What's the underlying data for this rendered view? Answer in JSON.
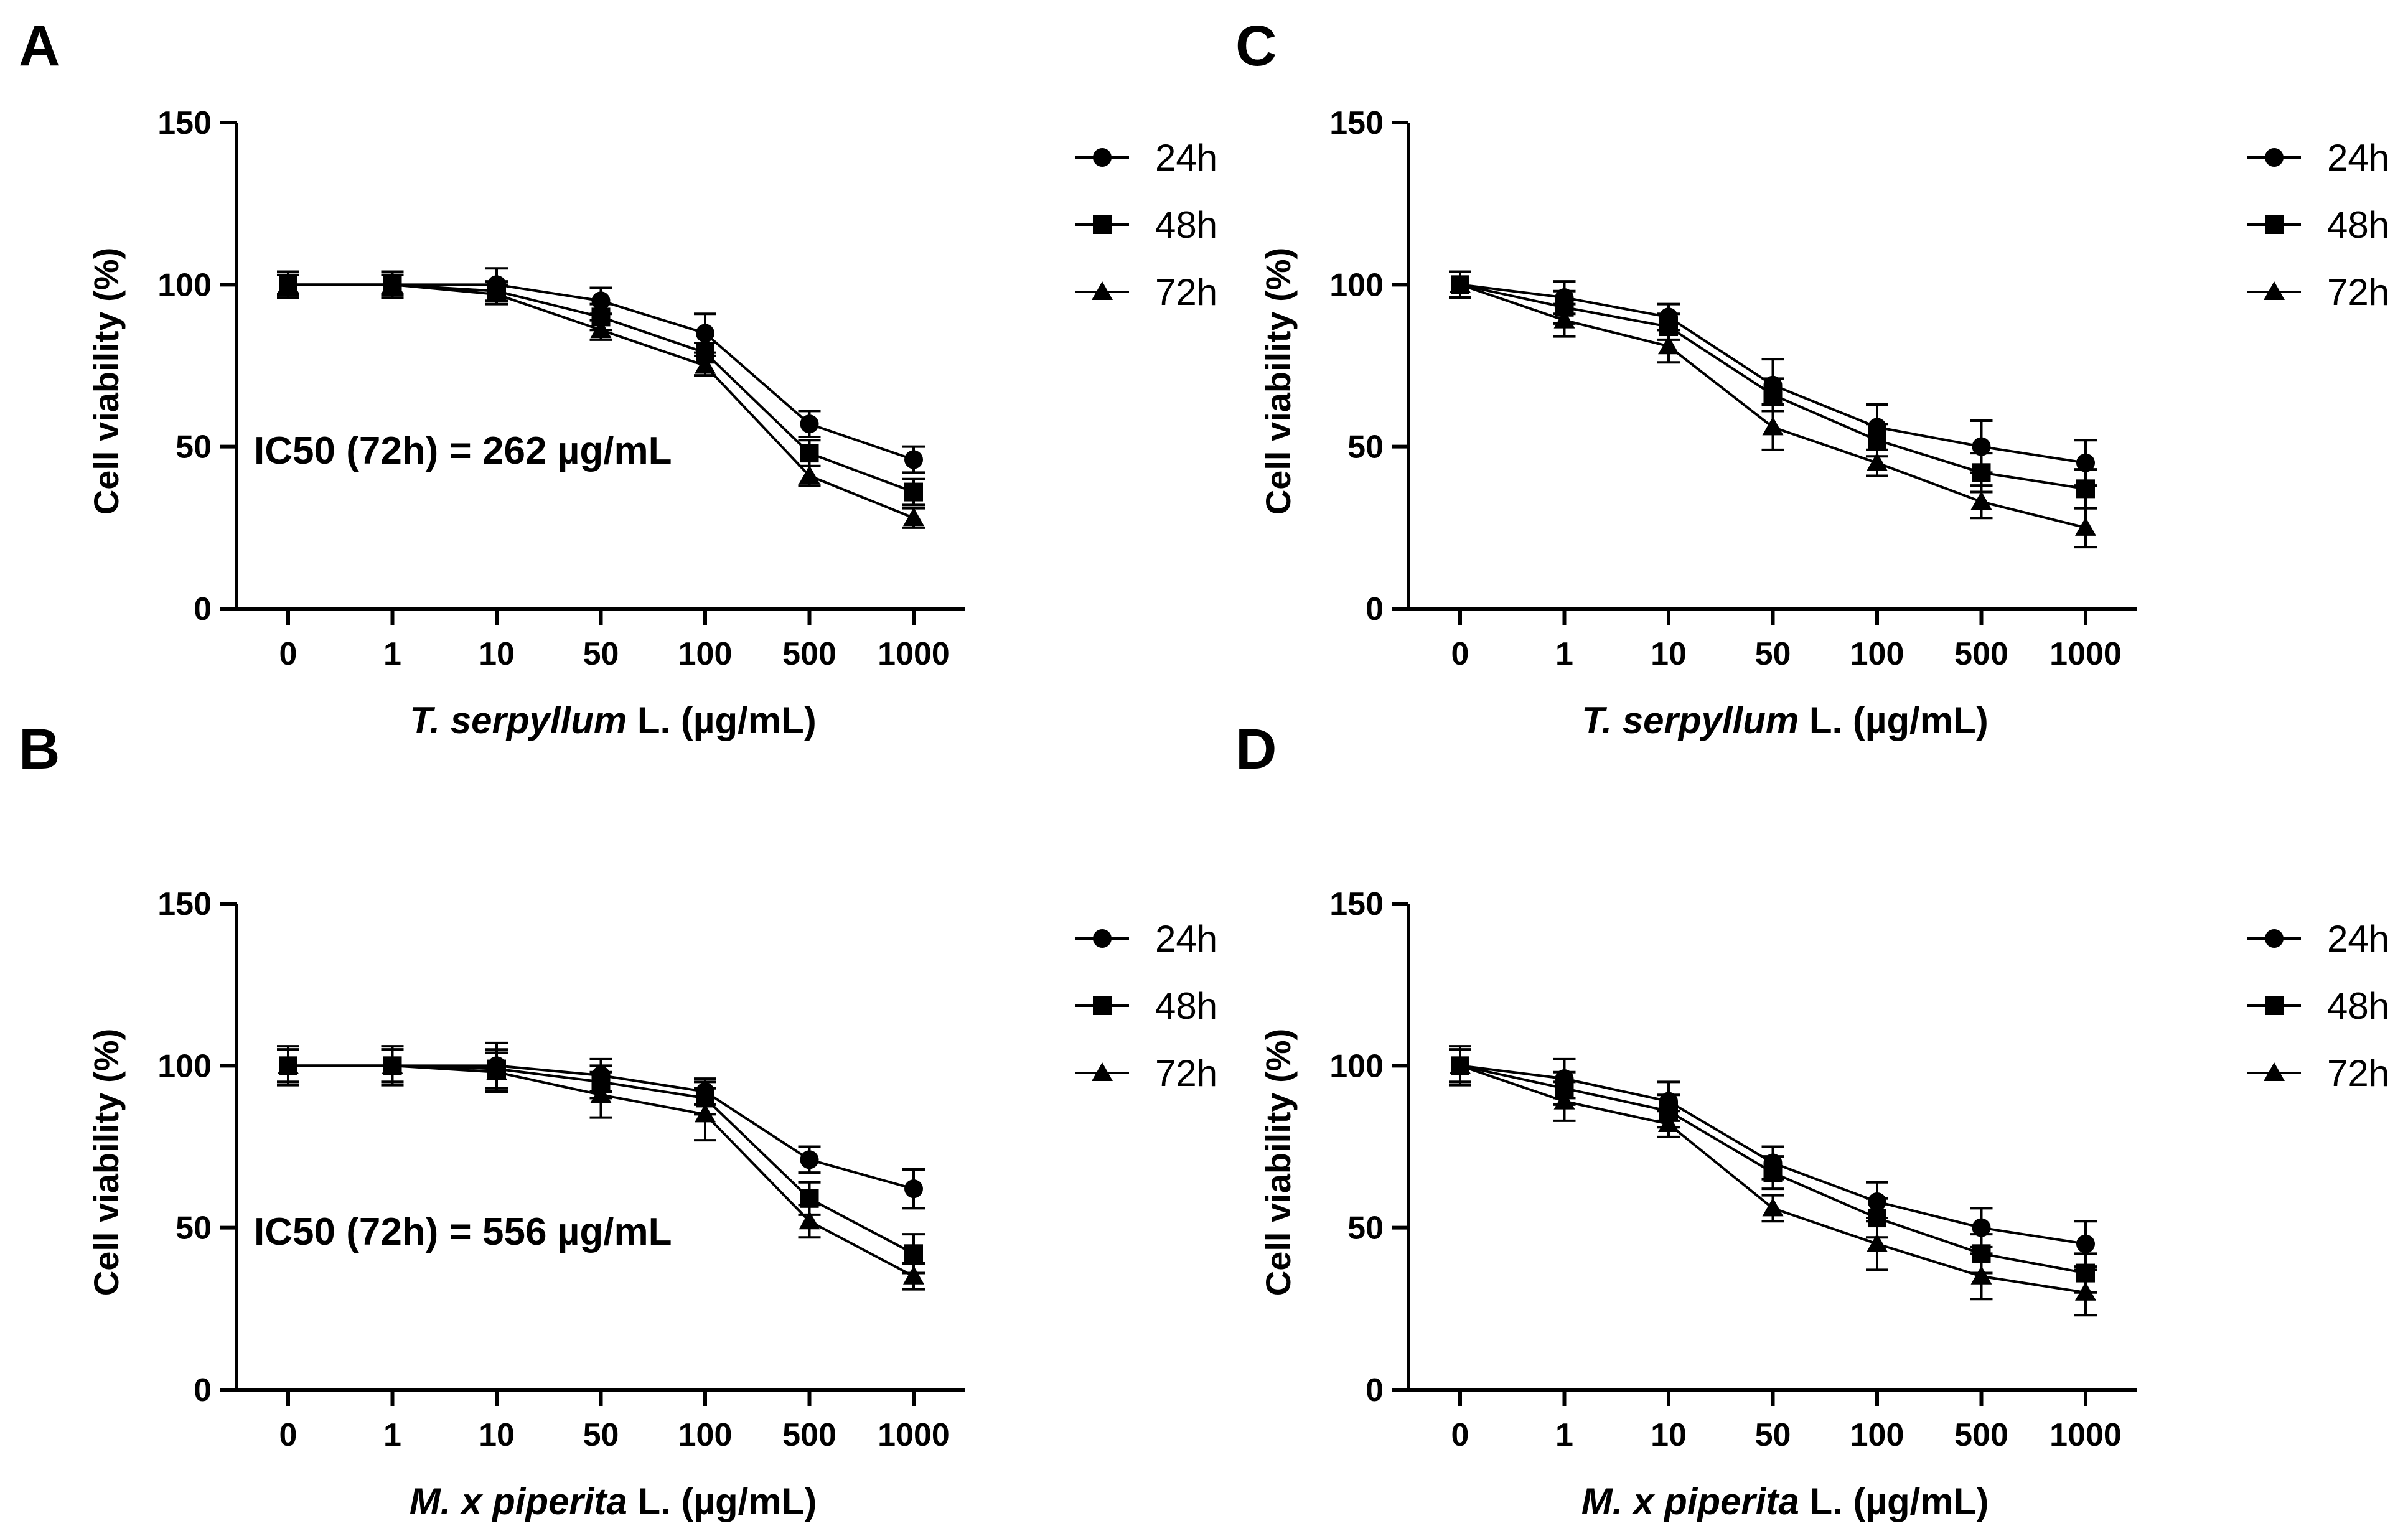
{
  "figure": {
    "panels": [
      "A",
      "C",
      "B",
      "D"
    ]
  },
  "chart_data": [
    {
      "panel": "A",
      "type": "line",
      "categories": [
        "0",
        "1",
        "10",
        "50",
        "100",
        "500",
        "1000"
      ],
      "ylabel": "Cell viability (%)",
      "xlabel_italic": "T. serpyllum",
      "xlabel_rest": " L.  (µg/mL)",
      "yticks": [
        "0",
        "50",
        "100",
        "150"
      ],
      "ylim": [
        0,
        150
      ],
      "annotation": "IC50 (72h) = 262 µg/mL",
      "legend": [
        "24h",
        "48h",
        "72h"
      ],
      "series": [
        {
          "name": "24h",
          "marker": "circle",
          "values": [
            100,
            100,
            100,
            95,
            85,
            57,
            46
          ],
          "errors": [
            4,
            4,
            5,
            4,
            6,
            4,
            4
          ]
        },
        {
          "name": "48h",
          "marker": "square",
          "values": [
            100,
            100,
            98,
            90,
            79,
            48,
            36
          ],
          "errors": [
            4,
            3,
            3,
            4,
            3,
            4,
            4
          ]
        },
        {
          "name": "72h",
          "marker": "triangle",
          "values": [
            100,
            100,
            97,
            86,
            75,
            41,
            28
          ],
          "errors": [
            3,
            3,
            3,
            3,
            3,
            3,
            3
          ]
        }
      ]
    },
    {
      "panel": "C",
      "type": "line",
      "categories": [
        "0",
        "1",
        "10",
        "50",
        "100",
        "500",
        "1000"
      ],
      "ylabel": "Cell viability (%)",
      "xlabel_italic": "T. serpyllum",
      "xlabel_rest": "  L. (µg/mL)",
      "yticks": [
        "0",
        "50",
        "100",
        "150"
      ],
      "ylim": [
        0,
        150
      ],
      "annotation": "",
      "legend": [
        "24h",
        "48h",
        "72h"
      ],
      "series": [
        {
          "name": "24h",
          "marker": "circle",
          "values": [
            100,
            96,
            90,
            69,
            56,
            50,
            45
          ],
          "errors": [
            4,
            5,
            4,
            8,
            7,
            8,
            7
          ]
        },
        {
          "name": "48h",
          "marker": "square",
          "values": [
            100,
            93,
            87,
            66,
            52,
            42,
            37
          ],
          "errors": [
            4,
            5,
            4,
            5,
            5,
            6,
            6
          ]
        },
        {
          "name": "72h",
          "marker": "triangle",
          "values": [
            100,
            89,
            81,
            56,
            45,
            33,
            25
          ],
          "errors": [
            4,
            5,
            5,
            7,
            4,
            5,
            6
          ]
        }
      ]
    },
    {
      "panel": "B",
      "type": "line",
      "categories": [
        "0",
        "1",
        "10",
        "50",
        "100",
        "500",
        "1000"
      ],
      "ylabel": "Cell viability (%)",
      "xlabel_italic": "M. x piperita",
      "xlabel_rest": " L. (µg/mL)",
      "yticks": [
        "0",
        "50",
        "100",
        "150"
      ],
      "ylim": [
        0,
        150
      ],
      "annotation": "IC50 (72h) = 556 µg/mL",
      "legend": [
        "24h",
        "48h",
        "72h"
      ],
      "series": [
        {
          "name": "24h",
          "marker": "circle",
          "values": [
            100,
            100,
            100,
            97,
            92,
            71,
            62
          ],
          "errors": [
            6,
            6,
            7,
            5,
            4,
            4,
            6
          ]
        },
        {
          "name": "48h",
          "marker": "square",
          "values": [
            100,
            100,
            99,
            95,
            90,
            59,
            42
          ],
          "errors": [
            5,
            5,
            6,
            5,
            5,
            5,
            6
          ]
        },
        {
          "name": "72h",
          "marker": "triangle",
          "values": [
            100,
            100,
            98,
            91,
            85,
            52,
            35
          ],
          "errors": [
            5,
            5,
            6,
            7,
            8,
            5,
            4
          ]
        }
      ]
    },
    {
      "panel": "D",
      "type": "line",
      "categories": [
        "0",
        "1",
        "10",
        "50",
        "100",
        "500",
        "1000"
      ],
      "ylabel": "Cell viability (%)",
      "xlabel_italic": "M. x piperita",
      "xlabel_rest": " L. (µg/mL)",
      "yticks": [
        "0",
        "50",
        "100",
        "150"
      ],
      "ylim": [
        0,
        150
      ],
      "annotation": "",
      "legend": [
        "24h",
        "48h",
        "72h"
      ],
      "series": [
        {
          "name": "24h",
          "marker": "circle",
          "values": [
            100,
            96,
            89,
            70,
            58,
            50,
            45
          ],
          "errors": [
            6,
            6,
            6,
            5,
            6,
            6,
            7
          ]
        },
        {
          "name": "48h",
          "marker": "square",
          "values": [
            100,
            93,
            86,
            67,
            53,
            42,
            36
          ],
          "errors": [
            5,
            5,
            5,
            5,
            6,
            6,
            6
          ]
        },
        {
          "name": "72h",
          "marker": "triangle",
          "values": [
            100,
            89,
            82,
            56,
            45,
            35,
            30
          ],
          "errors": [
            5,
            6,
            4,
            4,
            8,
            7,
            7
          ]
        }
      ]
    }
  ]
}
